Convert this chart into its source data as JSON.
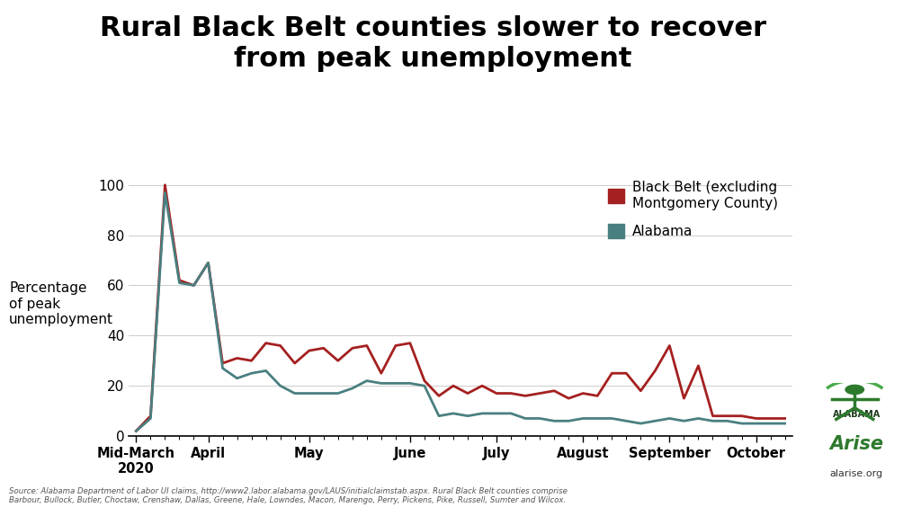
{
  "title": "Rural Black Belt counties slower to recover\nfrom peak unemployment",
  "ylabel": "Percentage\nof peak\nunemployment",
  "source_text": "Source: Alabama Department of Labor UI claims, http://www2.labor.alabama.gov/LAUS/initialclaimstab.aspx. Rural Black Belt counties comprise\nBarbour, Bullock, Butler, Choctaw, Crenshaw, Dallas, Greene, Hale, Lowndes, Macon, Marengo, Perry, Pickens, Pike, Russell, Sumter and Wilcox.",
  "black_belt_color": "#a52020",
  "alabama_color": "#4a7f80",
  "background_color": "#ffffff",
  "x_tick_labels": [
    "Mid-March\n2020",
    "April",
    "May",
    "June",
    "July",
    "August",
    "September",
    "October"
  ],
  "x_tick_positions": [
    0,
    5,
    12,
    19,
    25,
    31,
    37,
    43
  ],
  "ylim": [
    0,
    105
  ],
  "yticks": [
    0,
    20,
    40,
    60,
    80,
    100
  ],
  "black_belt": [
    2,
    8,
    100,
    62,
    60,
    69,
    29,
    31,
    30,
    37,
    36,
    29,
    34,
    35,
    30,
    35,
    36,
    25,
    36,
    37,
    22,
    16,
    20,
    17,
    20,
    17,
    17,
    16,
    17,
    18,
    15,
    17,
    16,
    25,
    25,
    18,
    26,
    36,
    15,
    28,
    8,
    8,
    8,
    7,
    7,
    7
  ],
  "alabama": [
    2,
    7,
    97,
    61,
    60,
    69,
    27,
    23,
    25,
    26,
    20,
    17,
    17,
    17,
    17,
    19,
    22,
    21,
    21,
    21,
    20,
    8,
    9,
    8,
    9,
    9,
    9,
    7,
    7,
    6,
    6,
    7,
    7,
    7,
    6,
    5,
    6,
    7,
    6,
    7,
    6,
    6,
    5,
    5,
    5,
    5
  ]
}
